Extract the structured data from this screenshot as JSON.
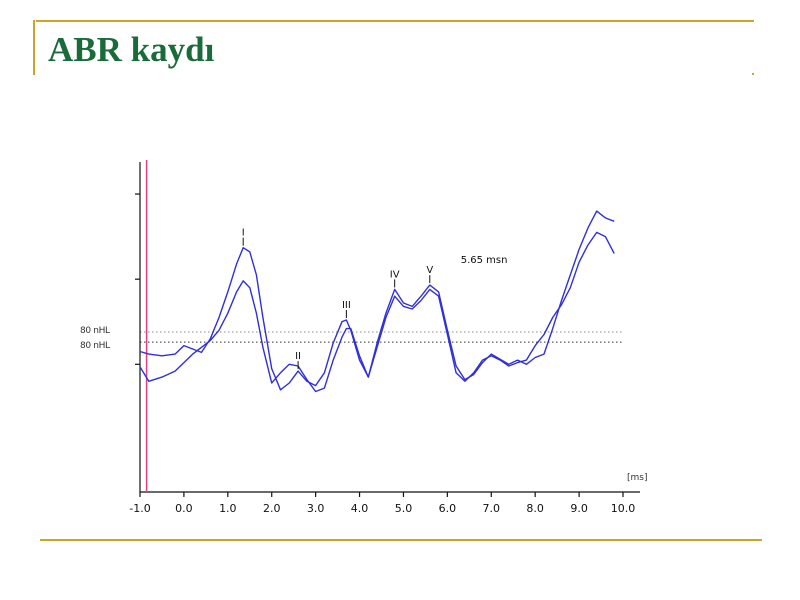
{
  "slide": {
    "title": "ABR kaydı",
    "accent_color": "#c9a52a",
    "title_color": "#1a6b3a"
  },
  "chart_data": {
    "type": "line",
    "title": "",
    "xlabel": "[ms]",
    "ylabel": "",
    "xlim": [
      -1.0,
      10.0
    ],
    "x_ticks": [
      "-1.0",
      "0.0",
      "1.0",
      "2.0",
      "3.0",
      "4.0",
      "5.0",
      "6.0",
      "7.0",
      "8.0",
      "9.0",
      "10.0"
    ],
    "x_tick_values": [
      -1,
      0,
      1,
      2,
      3,
      4,
      5,
      6,
      7,
      8,
      9,
      10
    ],
    "ylim": [
      -1.0,
      2.9
    ],
    "y_tick_values": [
      2.5,
      1.5,
      0.5
    ],
    "stimulus_marker_x": -0.85,
    "reference_lines": [
      {
        "label": "80 nHL",
        "y": 0.88,
        "style": "dotted"
      },
      {
        "label": "80 nHL",
        "y": 0.76,
        "style": "dotted"
      }
    ],
    "series": [
      {
        "color": "#3030d8",
        "x": [
          -1.0,
          -0.8,
          -0.5,
          -0.2,
          0.0,
          0.2,
          0.4,
          0.6,
          0.8,
          1.0,
          1.2,
          1.35,
          1.5,
          1.65,
          1.8,
          2.0,
          2.2,
          2.4,
          2.6,
          2.8,
          3.0,
          3.2,
          3.4,
          3.6,
          3.7,
          3.8,
          4.0,
          4.2,
          4.4,
          4.6,
          4.8,
          5.0,
          5.2,
          5.4,
          5.6,
          5.8,
          6.0,
          6.2,
          6.4,
          6.6,
          6.8,
          7.0,
          7.2,
          7.4,
          7.6,
          7.8,
          8.0,
          8.2,
          8.4,
          8.6,
          8.8,
          9.0,
          9.2,
          9.4,
          9.6,
          9.8
        ],
        "y": [
          0.65,
          0.62,
          0.6,
          0.62,
          0.72,
          0.68,
          0.64,
          0.8,
          1.05,
          1.35,
          1.68,
          1.87,
          1.82,
          1.55,
          1.05,
          0.45,
          0.2,
          0.28,
          0.42,
          0.3,
          0.25,
          0.4,
          0.75,
          1.0,
          1.02,
          0.9,
          0.55,
          0.35,
          0.75,
          1.1,
          1.38,
          1.22,
          1.18,
          1.3,
          1.43,
          1.35,
          0.9,
          0.48,
          0.32,
          0.38,
          0.52,
          0.62,
          0.56,
          0.5,
          0.55,
          0.5,
          0.58,
          0.62,
          0.92,
          1.25,
          1.55,
          1.85,
          2.1,
          2.3,
          2.22,
          2.18
        ]
      },
      {
        "color": "#3030d8",
        "x": [
          -1.0,
          -0.8,
          -0.5,
          -0.2,
          0.0,
          0.2,
          0.4,
          0.6,
          0.8,
          1.0,
          1.2,
          1.35,
          1.5,
          1.65,
          1.8,
          2.0,
          2.2,
          2.4,
          2.6,
          2.8,
          3.0,
          3.2,
          3.4,
          3.6,
          3.7,
          3.8,
          4.0,
          4.2,
          4.4,
          4.6,
          4.8,
          5.0,
          5.2,
          5.4,
          5.6,
          5.8,
          6.0,
          6.2,
          6.4,
          6.6,
          6.8,
          7.0,
          7.2,
          7.4,
          7.6,
          7.8,
          8.0,
          8.2,
          8.4,
          8.6,
          8.8,
          9.0,
          9.2,
          9.4,
          9.6,
          9.8
        ],
        "y": [
          0.47,
          0.3,
          0.35,
          0.42,
          0.52,
          0.62,
          0.7,
          0.78,
          0.9,
          1.1,
          1.35,
          1.48,
          1.4,
          1.1,
          0.7,
          0.28,
          0.4,
          0.5,
          0.48,
          0.32,
          0.18,
          0.22,
          0.55,
          0.82,
          0.92,
          0.92,
          0.6,
          0.35,
          0.7,
          1.05,
          1.3,
          1.18,
          1.15,
          1.25,
          1.38,
          1.3,
          0.85,
          0.4,
          0.3,
          0.4,
          0.55,
          0.6,
          0.55,
          0.48,
          0.52,
          0.55,
          0.72,
          0.85,
          1.05,
          1.2,
          1.4,
          1.7,
          1.9,
          2.05,
          2.0,
          1.8
        ]
      }
    ],
    "annotations": [
      {
        "text": "I",
        "x": 1.35,
        "y": 1.87
      },
      {
        "text": "II",
        "x": 2.6,
        "y": 0.42
      },
      {
        "text": "III",
        "x": 3.7,
        "y": 1.02
      },
      {
        "text": "IV",
        "x": 4.8,
        "y": 1.38
      },
      {
        "text": "V",
        "x": 5.6,
        "y": 1.43
      },
      {
        "text": "5.65 msn",
        "x": 6.6,
        "y": 1.43
      }
    ]
  }
}
